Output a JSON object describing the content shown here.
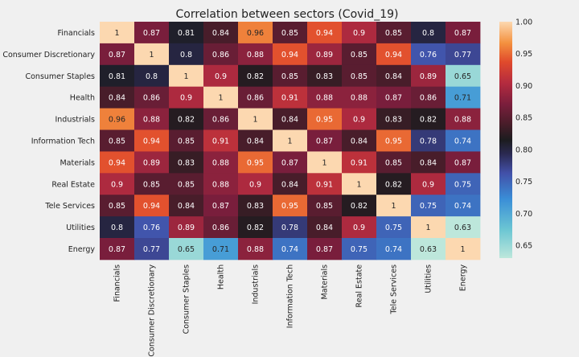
{
  "chart_data": {
    "type": "heatmap",
    "title": "Correlation between sectors (Covid_19)",
    "rows": [
      "Financials",
      "Consumer Discretionary",
      "Consumer Staples",
      "Health",
      "Industrials",
      "Information Tech",
      "Materials",
      "Real Estate",
      "Tele Services",
      "Utilities",
      "Energy"
    ],
    "columns": [
      "Financials",
      "Consumer Discretionary",
      "Consumer Staples",
      "Health",
      "Industrials",
      "Information Tech",
      "Materials",
      "Real Estate",
      "Tele Services",
      "Utilities",
      "Energy"
    ],
    "values": [
      [
        1,
        0.87,
        0.81,
        0.84,
        0.96,
        0.85,
        0.94,
        0.9,
        0.85,
        0.8,
        0.87
      ],
      [
        0.87,
        1,
        0.8,
        0.86,
        0.88,
        0.94,
        0.89,
        0.85,
        0.94,
        0.76,
        0.77
      ],
      [
        0.81,
        0.8,
        1,
        0.9,
        0.82,
        0.85,
        0.83,
        0.85,
        0.84,
        0.89,
        0.65
      ],
      [
        0.84,
        0.86,
        0.9,
        1,
        0.86,
        0.91,
        0.88,
        0.88,
        0.87,
        0.86,
        0.71
      ],
      [
        0.96,
        0.88,
        0.82,
        0.86,
        1,
        0.84,
        0.95,
        0.9,
        0.83,
        0.82,
        0.88
      ],
      [
        0.85,
        0.94,
        0.85,
        0.91,
        0.84,
        1,
        0.87,
        0.84,
        0.95,
        0.78,
        0.74
      ],
      [
        0.94,
        0.89,
        0.83,
        0.88,
        0.95,
        0.87,
        1,
        0.91,
        0.85,
        0.84,
        0.87
      ],
      [
        0.9,
        0.85,
        0.85,
        0.88,
        0.9,
        0.84,
        0.91,
        1,
        0.82,
        0.9,
        0.75
      ],
      [
        0.85,
        0.94,
        0.84,
        0.87,
        0.83,
        0.95,
        0.85,
        0.82,
        1,
        0.75,
        0.74
      ],
      [
        0.8,
        0.76,
        0.89,
        0.86,
        0.82,
        0.78,
        0.84,
        0.9,
        0.75,
        1,
        0.63
      ],
      [
        0.87,
        0.77,
        0.65,
        0.71,
        0.88,
        0.74,
        0.87,
        0.75,
        0.74,
        0.63,
        1
      ]
    ],
    "colorbar": {
      "min": 0.63,
      "max": 1.0,
      "ticks": [
        "0.65",
        "0.70",
        "0.75",
        "0.80",
        "0.85",
        "0.90",
        "0.95",
        "1.00"
      ]
    },
    "colormap": "icefire",
    "colormap_stops": [
      {
        "v": 0.0,
        "color": "#bde7db"
      },
      {
        "v": 0.12,
        "color": "#6cc6d3"
      },
      {
        "v": 0.25,
        "color": "#3a8ed7"
      },
      {
        "v": 0.36,
        "color": "#4250a8"
      },
      {
        "v": 0.44,
        "color": "#2b2a52"
      },
      {
        "v": 0.5,
        "color": "#1c1c1f"
      },
      {
        "v": 0.57,
        "color": "#4a1d2a"
      },
      {
        "v": 0.65,
        "color": "#7a1e3c"
      },
      {
        "v": 0.74,
        "color": "#b42b3f"
      },
      {
        "v": 0.83,
        "color": "#e04a2c"
      },
      {
        "v": 0.91,
        "color": "#f4913f"
      },
      {
        "v": 1.0,
        "color": "#fcd8b0"
      }
    ],
    "background": "#f0f0f0"
  }
}
